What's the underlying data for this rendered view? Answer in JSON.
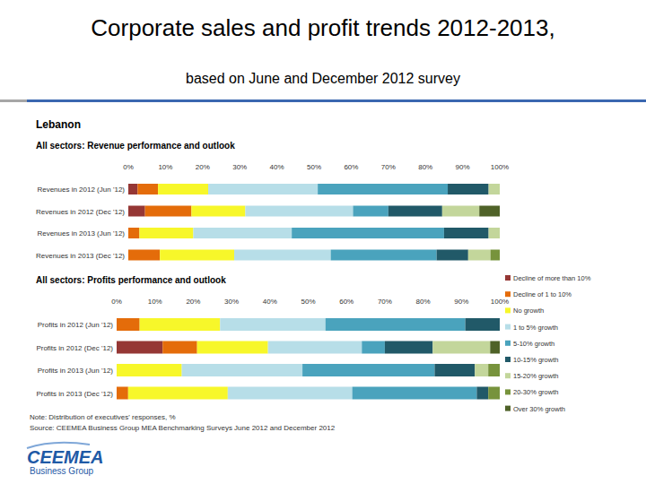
{
  "slide": {
    "title": "Corporate sales and profit trends 2012-2013,",
    "subtitle": "based on June and December 2012 survey"
  },
  "country": "Lebanon",
  "note": "Note: Distribution of executives' responses, %",
  "source": "Source: CEEMEA Business Group MEA Benchmarking Surveys June 2012 and December 2012",
  "logo": {
    "name": "CEEMEA",
    "tagline": "Business Group"
  },
  "chart_data": [
    {
      "type": "bar",
      "orientation": "horizontal",
      "stacked": true,
      "grid": false,
      "title": "All sectors: Revenue performance and outlook",
      "categories": [
        "Revenues in 2012 (Jun '12)",
        "Revenues in 2012 (Dec '12)",
        "Revenues in 2013 (Jun '12)",
        "Revenues in 2013 (Dec '12)"
      ],
      "xlim": [
        0,
        100
      ],
      "xticks": [
        {
          "value": 0,
          "label": "0%"
        },
        {
          "value": 10,
          "label": "10%"
        },
        {
          "value": 20,
          "label": "20%"
        },
        {
          "value": 30,
          "label": "30%"
        },
        {
          "value": 40,
          "label": "40%"
        },
        {
          "value": 50,
          "label": "50%"
        },
        {
          "value": 60,
          "label": "60%"
        },
        {
          "value": 70,
          "label": "70%"
        },
        {
          "value": 80,
          "label": "80%"
        },
        {
          "value": 90,
          "label": "90%"
        },
        {
          "value": 100,
          "label": "100%"
        }
      ],
      "series": [
        {
          "name": "Decline of more than 10%",
          "color": "#953735",
          "values": [
            2.5,
            4.5,
            0,
            0
          ]
        },
        {
          "name": "Decline of 1 to 10%",
          "color": "#e46c0a",
          "values": [
            5.5,
            12.5,
            3,
            8.5
          ]
        },
        {
          "name": "No growth",
          "color": "#f7f72a",
          "values": [
            13.5,
            14.5,
            14.5,
            20
          ]
        },
        {
          "name": "1 to 5% growth",
          "color": "#b7dee8",
          "values": [
            29.5,
            29,
            26.5,
            26
          ]
        },
        {
          "name": "5-10% growth",
          "color": "#4aa3bd",
          "values": [
            35,
            9.5,
            41,
            28.5
          ]
        },
        {
          "name": "10-15% growth",
          "color": "#215968",
          "values": [
            11,
            14.5,
            12,
            8.5
          ]
        },
        {
          "name": "15-20% growth",
          "color": "#c3d69b",
          "values": [
            3,
            10,
            3,
            6
          ]
        },
        {
          "name": "20-30% growth",
          "color": "#77933c",
          "values": [
            0,
            0,
            0,
            2.5
          ]
        },
        {
          "name": "Over 30% growth",
          "color": "#4f6228",
          "values": [
            0,
            5.5,
            0,
            0
          ]
        }
      ]
    },
    {
      "type": "bar",
      "orientation": "horizontal",
      "stacked": true,
      "grid": false,
      "legend": "right",
      "title": "All sectors: Profits performance and outlook",
      "categories": [
        "Profits in 2012 (Jun '12)",
        "Profits in 2012 (Dec '12)",
        "Profits in 2013 (Jun '12)",
        "Profits in 2013 (Dec '12)"
      ],
      "xlim": [
        0,
        100
      ],
      "xticks": [
        {
          "value": 0,
          "label": "0%"
        },
        {
          "value": 10,
          "label": "10%"
        },
        {
          "value": 20,
          "label": "20%"
        },
        {
          "value": 30,
          "label": "30%"
        },
        {
          "value": 40,
          "label": "40%"
        },
        {
          "value": 50,
          "label": "50%"
        },
        {
          "value": 60,
          "label": "60%"
        },
        {
          "value": 70,
          "label": "70%"
        },
        {
          "value": 80,
          "label": "80%"
        },
        {
          "value": 90,
          "label": "90%"
        },
        {
          "value": 100,
          "label": "100%"
        }
      ],
      "series": [
        {
          "name": "Decline of more than 10%",
          "color": "#953735",
          "values": [
            0,
            12,
            0,
            0
          ]
        },
        {
          "name": "Decline of 1 to 10%",
          "color": "#e46c0a",
          "values": [
            6,
            9,
            0,
            3
          ]
        },
        {
          "name": "No growth",
          "color": "#f7f72a",
          "values": [
            21,
            18.5,
            17,
            26
          ]
        },
        {
          "name": "1 to 5% growth",
          "color": "#b7dee8",
          "values": [
            27.5,
            24.5,
            31.5,
            32.5
          ]
        },
        {
          "name": "5-10% growth",
          "color": "#4aa3bd",
          "values": [
            36.5,
            6,
            34.5,
            32.5
          ]
        },
        {
          "name": "10-15% growth",
          "color": "#215968",
          "values": [
            9,
            12.5,
            10.5,
            3
          ]
        },
        {
          "name": "15-20% growth",
          "color": "#c3d69b",
          "values": [
            0,
            15,
            3.5,
            0
          ]
        },
        {
          "name": "20-30% growth",
          "color": "#77933c",
          "values": [
            0,
            0,
            3,
            3
          ]
        },
        {
          "name": "Over 30% growth",
          "color": "#4f6228",
          "values": [
            0,
            2.5,
            0,
            0
          ]
        }
      ]
    }
  ]
}
